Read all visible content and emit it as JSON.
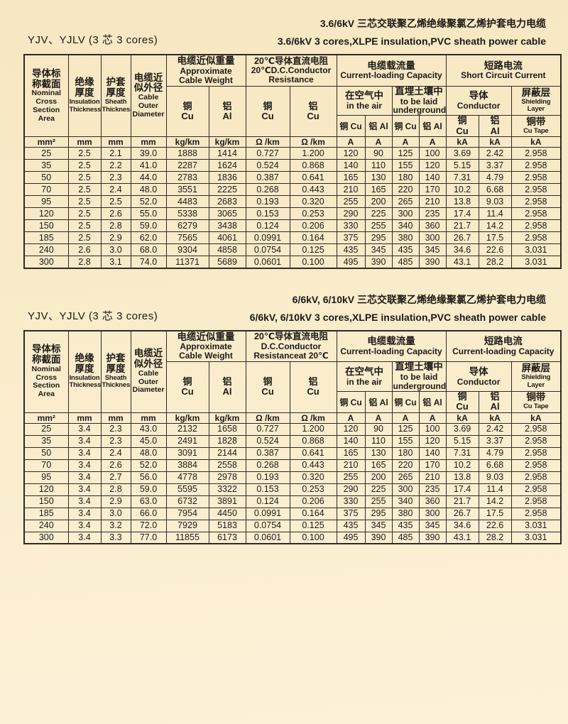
{
  "tables": [
    {
      "title_zh": "3.6/6kV 三芯交联聚乙烯绝缘聚氯乙烯护套电力电缆",
      "title_en": "3.6/6kV 3 cores,XLPE insulation,PVC sheath power cable",
      "model_label": "YJV、YJLV (3 芯  3 cores)",
      "header": {
        "nominal_zh": "导体标\n称截面",
        "nominal_en": "Nominal\nCross\nSection\nArea",
        "insulation_zh": "绝缘\n厚度",
        "insulation_en": "Insulation\nThickness",
        "sheath_zh": "护套\n厚度",
        "sheath_en": "Sheath\nThickness",
        "diameter_zh": "电缆近\n似外径",
        "diameter_en": "Cable\nOuter\nDiameter",
        "weight_zh": "电缆近似重量",
        "weight_en": "Approximate\nCable Weight",
        "resistance_zh": "20℃导体直流电阻",
        "resistance_en": "20℃D.C.Conductor\nResistance",
        "capacity_zh": "电缆载流量",
        "capacity_en": "Current-loading Capacity",
        "air_zh": "在空气中",
        "air_en": "in the air",
        "underground_zh": "直埋土壤中",
        "underground_en": "to be laid\nunderground",
        "short_zh": "短路电流",
        "short_en": "Short  Circuit Current",
        "conductor_zh": "导体",
        "conductor_en": "Conductor",
        "shielding_zh": "屏蔽层",
        "shielding_en": "Shielding Layer",
        "cu": "铜\nCu",
        "al": "铝\nAl",
        "al_cu": "铝\nCu",
        "cu_inline": "铜 Cu",
        "al_inline": "铝 Al",
        "cutape_zh": "铜带",
        "cutape_en": "Cu Tape"
      },
      "units": [
        "mm²",
        "mm",
        "mm",
        "mm",
        "kg/km",
        "kg/km",
        "Ω /km",
        "Ω /km",
        "A",
        "A",
        "A",
        "A",
        "kA",
        "kA",
        "kA"
      ],
      "rows": [
        [
          "25",
          "2.5",
          "2.1",
          "39.0",
          "1888",
          "1414",
          "0.727",
          "1.200",
          "120",
          "90",
          "125",
          "100",
          "3.69",
          "2.42",
          "2.958"
        ],
        [
          "35",
          "2.5",
          "2.2",
          "41.0",
          "2287",
          "1624",
          "0.524",
          "0.868",
          "140",
          "110",
          "155",
          "120",
          "5.15",
          "3.37",
          "2.958"
        ],
        [
          "50",
          "2.5",
          "2.3",
          "44.0",
          "2783",
          "1836",
          "0.387",
          "0.641",
          "165",
          "130",
          "180",
          "140",
          "7.31",
          "4.79",
          "2.958"
        ],
        [
          "70",
          "2.5",
          "2.4",
          "48.0",
          "3551",
          "2225",
          "0.268",
          "0.443",
          "210",
          "165",
          "220",
          "170",
          "10.2",
          "6.68",
          "2.958"
        ],
        [
          "95",
          "2.5",
          "2.5",
          "52.0",
          "4483",
          "2683",
          "0.193",
          "0.320",
          "255",
          "200",
          "265",
          "210",
          "13.8",
          "9.03",
          "2.958"
        ],
        [
          "120",
          "2.5",
          "2.6",
          "55.0",
          "5338",
          "3065",
          "0.153",
          "0.253",
          "290",
          "225",
          "300",
          "235",
          "17.4",
          "11.4",
          "2.958"
        ],
        [
          "150",
          "2.5",
          "2.8",
          "59.0",
          "6279",
          "3438",
          "0.124",
          "0.206",
          "330",
          "255",
          "340",
          "360",
          "21.7",
          "14.2",
          "2.958"
        ],
        [
          "185",
          "2.5",
          "2.9",
          "62.0",
          "7565",
          "4061",
          "0.0991",
          "0.164",
          "375",
          "295",
          "380",
          "300",
          "26.7",
          "17.5",
          "2.958"
        ],
        [
          "240",
          "2.6",
          "3.0",
          "68.0",
          "9304",
          "4858",
          "0.0754",
          "0.125",
          "435",
          "345",
          "435",
          "345",
          "34.6",
          "22.6",
          "3.031"
        ],
        [
          "300",
          "2.8",
          "3.1",
          "74.0",
          "11371",
          "5689",
          "0.0601",
          "0.100",
          "495",
          "390",
          "485",
          "390",
          "43.1",
          "28.2",
          "3.031"
        ]
      ]
    },
    {
      "title_zh": "6/6kV, 6/10kV 三芯交联聚乙烯绝缘聚氯乙烯护套电力电缆",
      "title_en": "6/6kV, 6/10kV 3 cores,XLPE insulation,PVC sheath power cable",
      "model_label": "YJV、YJLV (3 芯  3 cores)",
      "header": {
        "nominal_zh": "导体标\n称截面",
        "nominal_en": "Nominal\nCross\nSection\nArea",
        "insulation_zh": "绝缘\n厚度",
        "insulation_en": "Insulation\nThickness",
        "sheath_zh": "护套\n厚度",
        "sheath_en": "Sheath\nThickness",
        "diameter_zh": "电缆近\n似外径",
        "diameter_en": "Cable\nOuter\nDiameter",
        "weight_zh": "电缆近似重量",
        "weight_en": "Approximate\nCable Weight",
        "resistance_zh": "20℃导体直流电阻",
        "resistance_en": "D.C.Conductor\nResistanceat 20℃",
        "capacity_zh": "电缆载流量",
        "capacity_en": "Current-loading Capacity",
        "air_zh": "在空气中",
        "air_en": "in the air",
        "underground_zh": "直埋土壤中",
        "underground_en": "to be laid\nunderground",
        "short_zh": "短路电流",
        "short_en": "Current-loading Capacity",
        "conductor_zh": "导体",
        "conductor_en": "Conductor",
        "shielding_zh": "屏蔽层",
        "shielding_en": "Shielding Layer",
        "cu": "铜\nCu",
        "al": "铝\nAl",
        "al_cu": "铝\nCu",
        "cu_inline": "铜 Cu",
        "al_inline": "铝 Al",
        "cutape_zh": "铜带",
        "cutape_en": "Cu Tape"
      },
      "units": [
        "mm²",
        "mm",
        "mm",
        "mm",
        "kg/km",
        "kg/km",
        "Ω /km",
        "Ω /km",
        "A",
        "A",
        "A",
        "A",
        "kA",
        "kA",
        "kA"
      ],
      "rows": [
        [
          "25",
          "3.4",
          "2.3",
          "43.0",
          "2132",
          "1658",
          "0.727",
          "1.200",
          "120",
          "90",
          "125",
          "100",
          "3.69",
          "2.42",
          "2.958"
        ],
        [
          "35",
          "3.4",
          "2.3",
          "45.0",
          "2491",
          "1828",
          "0.524",
          "0.868",
          "140",
          "110",
          "155",
          "120",
          "5.15",
          "3.37",
          "2.958"
        ],
        [
          "50",
          "3.4",
          "2.4",
          "48.0",
          "3091",
          "2144",
          "0.387",
          "0.641",
          "165",
          "130",
          "180",
          "140",
          "7.31",
          "4.79",
          "2.958"
        ],
        [
          "70",
          "3.4",
          "2.6",
          "52.0",
          "3884",
          "2558",
          "0.268",
          "0.443",
          "210",
          "165",
          "220",
          "170",
          "10.2",
          "6.68",
          "2.958"
        ],
        [
          "95",
          "3.4",
          "2.7",
          "56.0",
          "4778",
          "2978",
          "0.193",
          "0.320",
          "255",
          "200",
          "265",
          "210",
          "13.8",
          "9.03",
          "2.958"
        ],
        [
          "120",
          "3.4",
          "2.8",
          "59.0",
          "5595",
          "3322",
          "0.153",
          "0.253",
          "290",
          "225",
          "300",
          "235",
          "17.4",
          "11.4",
          "2.958"
        ],
        [
          "150",
          "3.4",
          "2.9",
          "63.0",
          "6732",
          "3891",
          "0.124",
          "0.206",
          "330",
          "255",
          "340",
          "360",
          "21.7",
          "14.2",
          "2.958"
        ],
        [
          "185",
          "3.4",
          "3.0",
          "66.0",
          "7954",
          "4450",
          "0.0991",
          "0.164",
          "375",
          "295",
          "380",
          "300",
          "26.7",
          "17.5",
          "2.958"
        ],
        [
          "240",
          "3.4",
          "3.2",
          "72.0",
          "7929",
          "5183",
          "0.0754",
          "0.125",
          "435",
          "345",
          "435",
          "345",
          "34.6",
          "22.6",
          "3.031"
        ],
        [
          "300",
          "3.4",
          "3.3",
          "77.0",
          "11855",
          "6173",
          "0.0601",
          "0.100",
          "495",
          "390",
          "485",
          "390",
          "43.1",
          "28.2",
          "3.031"
        ]
      ]
    }
  ]
}
